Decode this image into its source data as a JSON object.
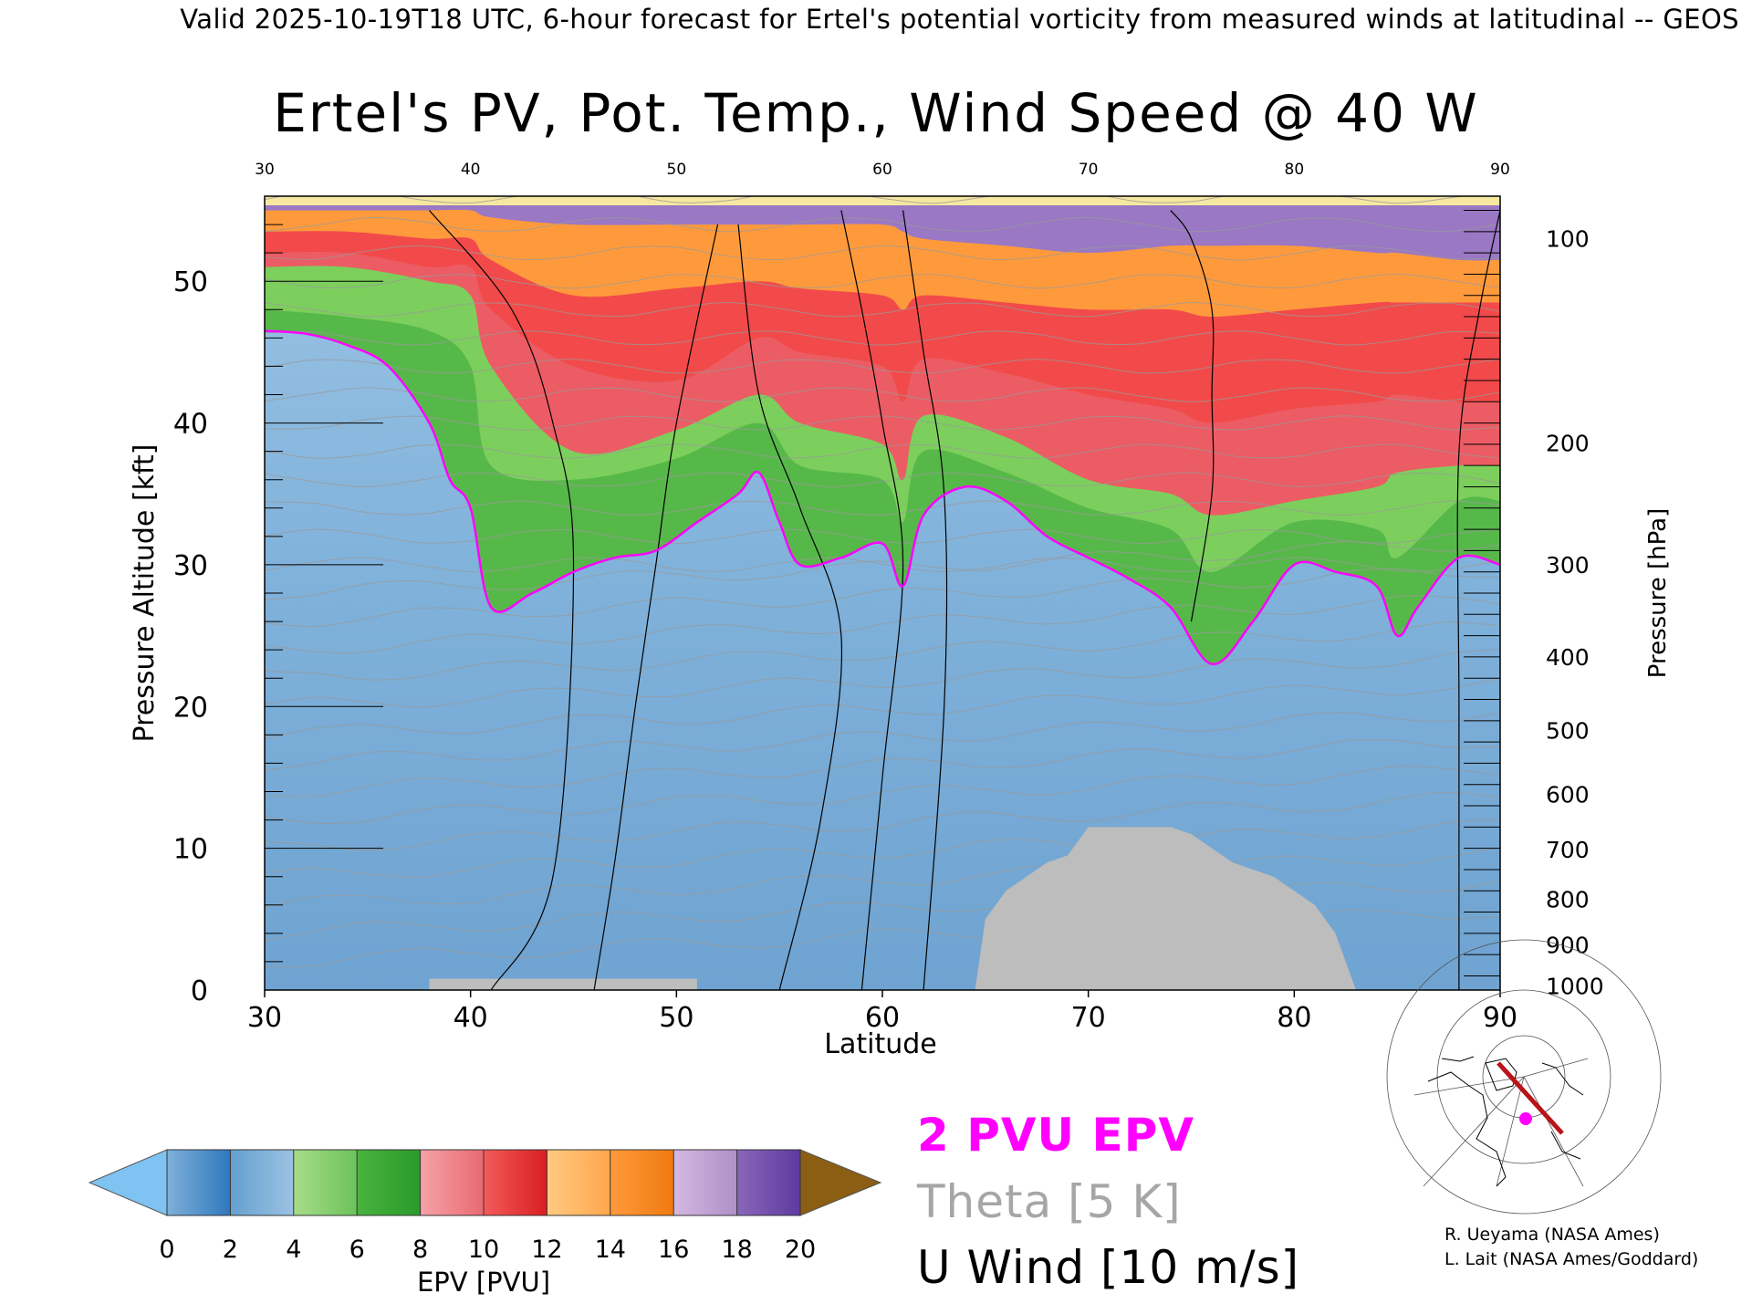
{
  "header": "Valid 2025-10-19T18 UTC, 6-hour forecast for Ertel's potential vorticity from measured winds at latitudinal -- GEOS",
  "title": "Ertel's PV, Pot. Temp., Wind Speed @ 40 W",
  "legend": {
    "epv_label": "2 PVU EPV",
    "theta_label": "Theta [5 K]",
    "wind_label": "U Wind [10 m/s]",
    "epv_color": "#ff00ff",
    "theta_color": "#a6a6a6",
    "wind_color": "#000000"
  },
  "credits": [
    "R. Ueyama (NASA Ames)",
    "L. Lait (NASA Ames/Goddard)"
  ],
  "colorbar": {
    "title": "EPV [PVU]",
    "ticks": [
      "0",
      "2",
      "4",
      "6",
      "8",
      "10",
      "12",
      "14",
      "16",
      "18",
      "20"
    ],
    "colors": {
      "under": "#7fc3f2",
      "over": "#8b5e14",
      "segments": [
        [
          "#7fb0da",
          "#2f78bd"
        ],
        [
          "#64a0cf",
          "#9cc2e2"
        ],
        [
          "#a8dc8a",
          "#6cc25a"
        ],
        [
          "#4ab33e",
          "#299a2a"
        ],
        [
          "#f5a3a8",
          "#e86a70"
        ],
        [
          "#f45a5a",
          "#d81e22"
        ],
        [
          "#ffca80",
          "#ffa64c"
        ],
        [
          "#ff9a3c",
          "#f07a10"
        ],
        [
          "#d4b8e0",
          "#b090c8"
        ],
        [
          "#8a66ba",
          "#5e3aa0"
        ],
        [
          "#f8f4a6",
          "#e8c880"
        ],
        [
          "#c8962c",
          "#8b5e14"
        ]
      ]
    }
  },
  "chart_data": {
    "type": "heatmap",
    "subject": "latitude-altitude cross-section",
    "xlabel": "Latitude",
    "ylabel": "Pressure Altitude [kft]",
    "y2label": "Pressure [hPa]",
    "xlim": [
      30,
      90
    ],
    "ylim": [
      0,
      56
    ],
    "xticks": [
      30,
      40,
      50,
      60,
      70,
      80,
      90
    ],
    "yticks": [
      0,
      10,
      20,
      30,
      40,
      50
    ],
    "pressure_ticks": [
      {
        "hpa": 100,
        "kft": 53.0
      },
      {
        "hpa": 200,
        "kft": 38.6
      },
      {
        "hpa": 300,
        "kft": 30.0
      },
      {
        "hpa": 400,
        "kft": 23.5
      },
      {
        "hpa": 500,
        "kft": 18.3
      },
      {
        "hpa": 600,
        "kft": 13.8
      },
      {
        "hpa": 700,
        "kft": 9.9
      },
      {
        "hpa": 800,
        "kft": 6.4
      },
      {
        "hpa": 900,
        "kft": 3.2
      },
      {
        "hpa": 1000,
        "kft": 0.3
      }
    ],
    "tropopause_2pvu": {
      "x": [
        30,
        32,
        34,
        36,
        38,
        39,
        40,
        41,
        43,
        45,
        47,
        49,
        51,
        53,
        54,
        55,
        56,
        58,
        60,
        61,
        62,
        64,
        66,
        68,
        70,
        72,
        74,
        76,
        78,
        80,
        82,
        84,
        85,
        86,
        88,
        90
      ],
      "y": [
        46.5,
        46.3,
        45.5,
        44.0,
        40.0,
        36.0,
        34.0,
        27.0,
        28.0,
        29.5,
        30.5,
        31.0,
        33.0,
        35.0,
        36.5,
        33.0,
        30.0,
        30.5,
        31.5,
        28.5,
        33.5,
        35.5,
        34.5,
        32.0,
        30.5,
        29.0,
        27.0,
        23.0,
        26.0,
        30.0,
        29.5,
        28.5,
        25.0,
        27.0,
        30.5,
        30.0
      ]
    },
    "epv_layer_tops": {
      "x": [
        30,
        34,
        38,
        40,
        41,
        45,
        50,
        54,
        56,
        60,
        61,
        62,
        66,
        70,
        74,
        76,
        80,
        84,
        85,
        88,
        90
      ],
      "levels": [
        {
          "pvu": 4,
          "y": [
            48.0,
            47.5,
            46.5,
            44.0,
            37.0,
            36.0,
            37.5,
            40.0,
            37.0,
            36.0,
            33.0,
            38.0,
            36.5,
            34.0,
            32.5,
            29.5,
            33.0,
            32.5,
            30.5,
            34.5,
            34.5
          ]
        },
        {
          "pvu": 6,
          "y": [
            51.0,
            51.0,
            50.0,
            49.0,
            44.0,
            38.0,
            39.5,
            42.0,
            40.0,
            38.5,
            36.0,
            40.5,
            39.0,
            36.0,
            35.0,
            33.5,
            34.5,
            35.5,
            36.5,
            37.0,
            37.0
          ]
        },
        {
          "pvu": 8,
          "y": [
            52.0,
            52.0,
            51.0,
            51.0,
            48.0,
            44.0,
            43.0,
            46.0,
            45.0,
            44.0,
            41.5,
            44.5,
            43.5,
            42.0,
            41.0,
            40.0,
            41.0,
            41.5,
            42.0,
            41.5,
            41.5
          ]
        },
        {
          "pvu": 12,
          "y": [
            53.5,
            53.5,
            53.0,
            53.0,
            51.5,
            49.0,
            49.5,
            50.0,
            49.5,
            49.0,
            48.0,
            49.0,
            48.5,
            48.0,
            48.0,
            47.5,
            48.0,
            48.5,
            48.5,
            48.5,
            48.5
          ]
        },
        {
          "pvu": 14,
          "y": [
            55.0,
            55.0,
            55.0,
            55.0,
            54.5,
            54.0,
            54.0,
            54.0,
            54.0,
            54.0,
            53.5,
            53.0,
            52.5,
            52.0,
            52.5,
            52.5,
            52.5,
            52.0,
            52.0,
            51.5,
            51.5
          ]
        }
      ]
    },
    "u_wind_10ms_contours": [
      {
        "x": [
          38,
          42,
          44,
          45,
          44,
          41
        ],
        "y": [
          55,
          48,
          40,
          30,
          8,
          0
        ]
      },
      {
        "x": [
          46,
          47,
          48,
          49,
          50,
          52
        ],
        "y": [
          0,
          9,
          20,
          30,
          40,
          54
        ]
      },
      {
        "x": [
          55,
          57,
          58,
          56,
          54,
          53
        ],
        "y": [
          0,
          12,
          25,
          34,
          42,
          54
        ]
      },
      {
        "x": [
          59,
          60,
          61,
          60,
          59,
          58
        ],
        "y": [
          0,
          15,
          30,
          40,
          48,
          55
        ]
      },
      {
        "x": [
          62,
          63,
          63,
          62,
          61
        ],
        "y": [
          0,
          20,
          35,
          45,
          55
        ]
      },
      {
        "x": [
          75,
          76,
          76,
          76,
          75,
          74
        ],
        "y": [
          26,
          35,
          42,
          48,
          53,
          55
        ]
      },
      {
        "x": [
          88,
          88,
          88,
          89,
          90
        ],
        "y": [
          0,
          20,
          38,
          48,
          55
        ]
      }
    ],
    "unresolved_terrain_kft": {
      "x": [
        64.5,
        65,
        66,
        67,
        68,
        69,
        70,
        71,
        72,
        73,
        74,
        75,
        76,
        77,
        78,
        79,
        80,
        81,
        82,
        83
      ],
      "y": [
        0,
        5,
        7,
        8,
        9,
        9.5,
        11.5,
        11.5,
        11.5,
        11.5,
        11.5,
        11.0,
        10.0,
        9.0,
        8.5,
        8.0,
        7.0,
        6.0,
        4.0,
        0.0
      ]
    }
  }
}
